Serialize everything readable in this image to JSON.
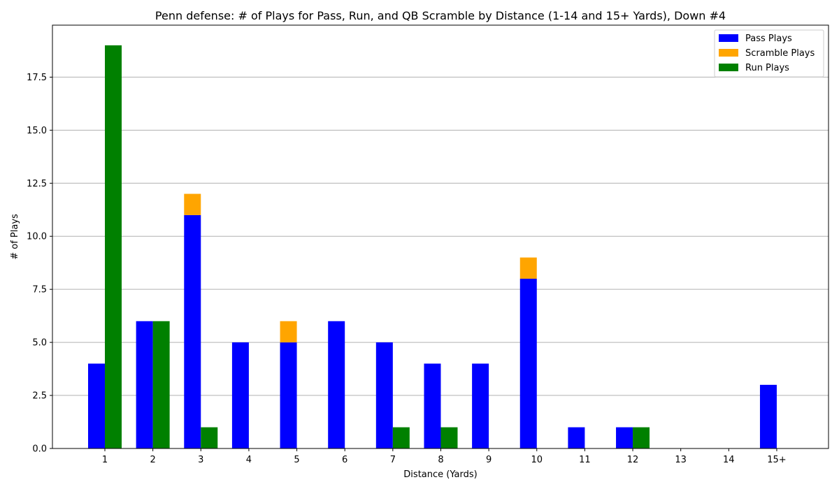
{
  "chart_data": {
    "type": "bar",
    "title": "Penn defense: # of Plays for Pass, Run, and QB Scramble by Distance (1-14 and 15+ Yards), Down #4",
    "xlabel": "Distance (Yards)",
    "ylabel": "# of Plays",
    "categories": [
      "1",
      "2",
      "3",
      "4",
      "5",
      "6",
      "7",
      "8",
      "9",
      "10",
      "11",
      "12",
      "13",
      "14",
      "15+"
    ],
    "series": [
      {
        "name": "Pass Plays",
        "color": "#0000ff",
        "values": [
          4,
          6,
          11,
          5,
          5,
          6,
          5,
          4,
          4,
          8,
          1,
          1,
          0,
          0,
          3
        ]
      },
      {
        "name": "Scramble Plays",
        "color": "#ffa500",
        "values": [
          0,
          0,
          1,
          0,
          1,
          0,
          0,
          0,
          0,
          1,
          0,
          0,
          0,
          0,
          0
        ],
        "stacked_on": "Pass Plays"
      },
      {
        "name": "Run Plays",
        "color": "#008000",
        "values": [
          19,
          6,
          1,
          0,
          0,
          0,
          1,
          1,
          0,
          0,
          0,
          1,
          0,
          0,
          0
        ]
      }
    ],
    "ylim": [
      0,
      19.95
    ],
    "yticks": [
      "0.0",
      "2.5",
      "5.0",
      "7.5",
      "10.0",
      "12.5",
      "15.0",
      "17.5"
    ],
    "ytick_values": [
      0,
      2.5,
      5,
      7.5,
      10,
      12.5,
      15,
      17.5
    ],
    "grid": "horizontal",
    "legend_position": "top-right"
  }
}
